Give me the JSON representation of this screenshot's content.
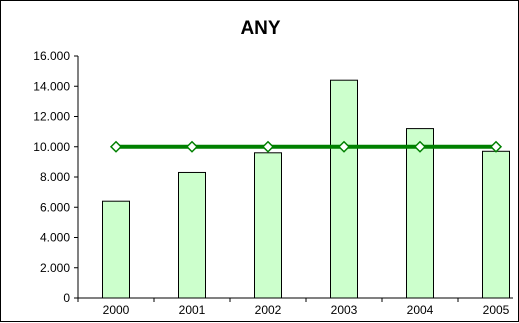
{
  "chart_data": {
    "type": "bar",
    "title": "ANY",
    "categories": [
      "2000",
      "2001",
      "2002",
      "2003",
      "2004",
      "2005"
    ],
    "series": [
      {
        "type": "bar",
        "values": [
          6400,
          8300,
          9600,
          14400,
          11200,
          9700
        ],
        "color": "#ccffcc",
        "border": "#000000"
      },
      {
        "type": "line",
        "values": [
          10000,
          10000,
          10000,
          10000,
          10000,
          10000
        ],
        "color": "#008000",
        "marker": "diamond",
        "marker_fill": "#ffffff"
      }
    ],
    "y_ticks": [
      "0",
      "2.000",
      "4.000",
      "6.000",
      "8.000",
      "10.000",
      "12.000",
      "14.000",
      "16.000"
    ],
    "ylim": [
      0,
      16000
    ],
    "grid": false,
    "legend": "none"
  }
}
